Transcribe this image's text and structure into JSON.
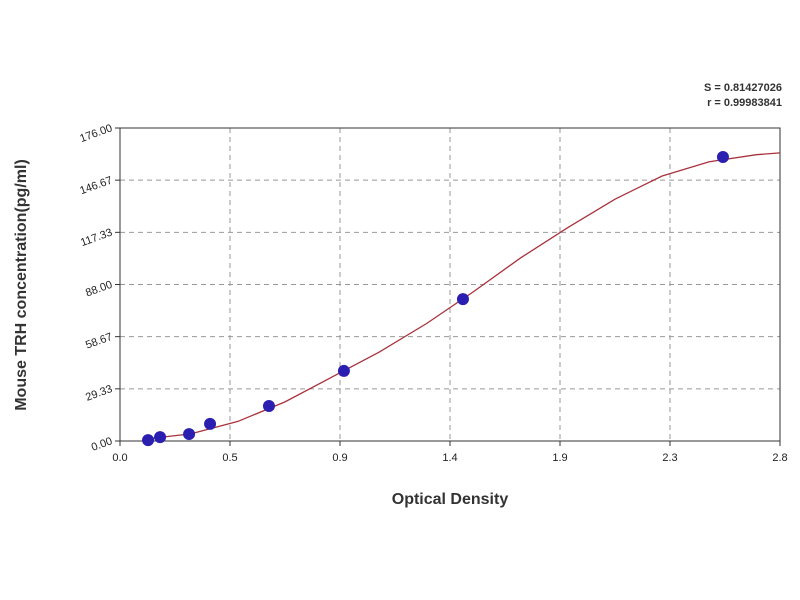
{
  "chart_data": {
    "type": "scatter",
    "xlabel": "Optical Density",
    "ylabel": "Mouse TRH concentration(pg/ml)",
    "annotations": [
      "S = 0.81427026",
      "r = 0.99983841"
    ],
    "xlim": [
      0,
      2.8
    ],
    "ylim": [
      0,
      176
    ],
    "xticks": [
      {
        "value": 0,
        "label": "0.0"
      },
      {
        "value": 0.4667,
        "label": "0.5"
      },
      {
        "value": 0.9333,
        "label": "0.9"
      },
      {
        "value": 1.4,
        "label": "1.4"
      },
      {
        "value": 1.8667,
        "label": "1.9"
      },
      {
        "value": 2.3333,
        "label": "2.3"
      },
      {
        "value": 2.8,
        "label": "2.8"
      }
    ],
    "yticks": [
      {
        "value": 0,
        "label": "0.00"
      },
      {
        "value": 29.33,
        "label": "29.33"
      },
      {
        "value": 58.67,
        "label": "58.67"
      },
      {
        "value": 88,
        "label": "88.00"
      },
      {
        "value": 117.33,
        "label": "117.33"
      },
      {
        "value": 146.67,
        "label": "146.67"
      },
      {
        "value": 176,
        "label": "176.00"
      }
    ],
    "grid": true,
    "points": {
      "color": "#2a1fb0",
      "x": [
        0.119,
        0.17,
        0.293,
        0.382,
        0.632,
        0.95,
        1.455,
        2.558
      ],
      "values": [
        0.5,
        2.2,
        3.9,
        9.6,
        19.7,
        39.4,
        79.8,
        159.7
      ]
    },
    "fit": {
      "color": "#a8323c",
      "x": [
        0.1,
        0.3,
        0.5,
        0.7,
        0.9,
        1.1,
        1.3,
        1.5,
        1.7,
        1.9,
        2.1,
        2.3,
        2.5,
        2.7,
        2.8
      ],
      "values": [
        1,
        4,
        11,
        22,
        36,
        50,
        66,
        84,
        103,
        120,
        136,
        149,
        157,
        161,
        162
      ]
    }
  }
}
